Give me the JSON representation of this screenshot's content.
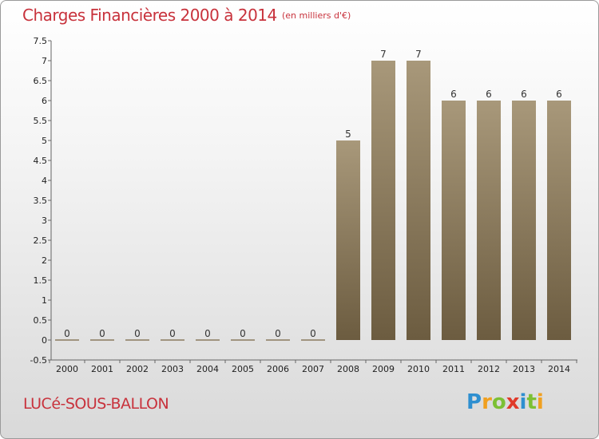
{
  "header": {
    "title": "Charges Financières 2000 à 2014",
    "unit": "(en milliers d'€)"
  },
  "footer": {
    "commune": "LUCé-SOUS-BALLON",
    "logo_text": "Proxiti"
  },
  "colors": {
    "title": "#c8323c",
    "bar_light": "#a8987a",
    "bar_dark": "#6c5c40"
  },
  "chart_data": {
    "type": "bar",
    "title": "Charges Financières 2000 à 2014",
    "subtitle": "(en milliers d'€)",
    "categories": [
      "2000",
      "2001",
      "2002",
      "2003",
      "2004",
      "2005",
      "2006",
      "2007",
      "2008",
      "2009",
      "2010",
      "2011",
      "2012",
      "2013",
      "2014"
    ],
    "values": [
      0,
      0,
      0,
      0,
      0,
      0,
      0,
      0,
      5,
      7,
      7,
      6,
      6,
      6,
      6
    ],
    "data_labels": [
      "0",
      "0",
      "0",
      "0",
      "0",
      "0",
      "0",
      "0",
      "5",
      "7",
      "7",
      "6",
      "6",
      "6",
      "6"
    ],
    "ylim": [
      -0.5,
      7.5
    ],
    "yticks": [
      "-0.5",
      "0",
      "0.5",
      "1",
      "1.5",
      "2",
      "2.5",
      "3",
      "3.5",
      "4",
      "4.5",
      "5",
      "5.5",
      "6",
      "6.5",
      "7",
      "7.5"
    ],
    "ytick_values": [
      -0.5,
      0,
      0.5,
      1,
      1.5,
      2,
      2.5,
      3,
      3.5,
      4,
      4.5,
      5,
      5.5,
      6,
      6.5,
      7,
      7.5
    ],
    "xlabel": "",
    "ylabel": "",
    "grid": false
  }
}
